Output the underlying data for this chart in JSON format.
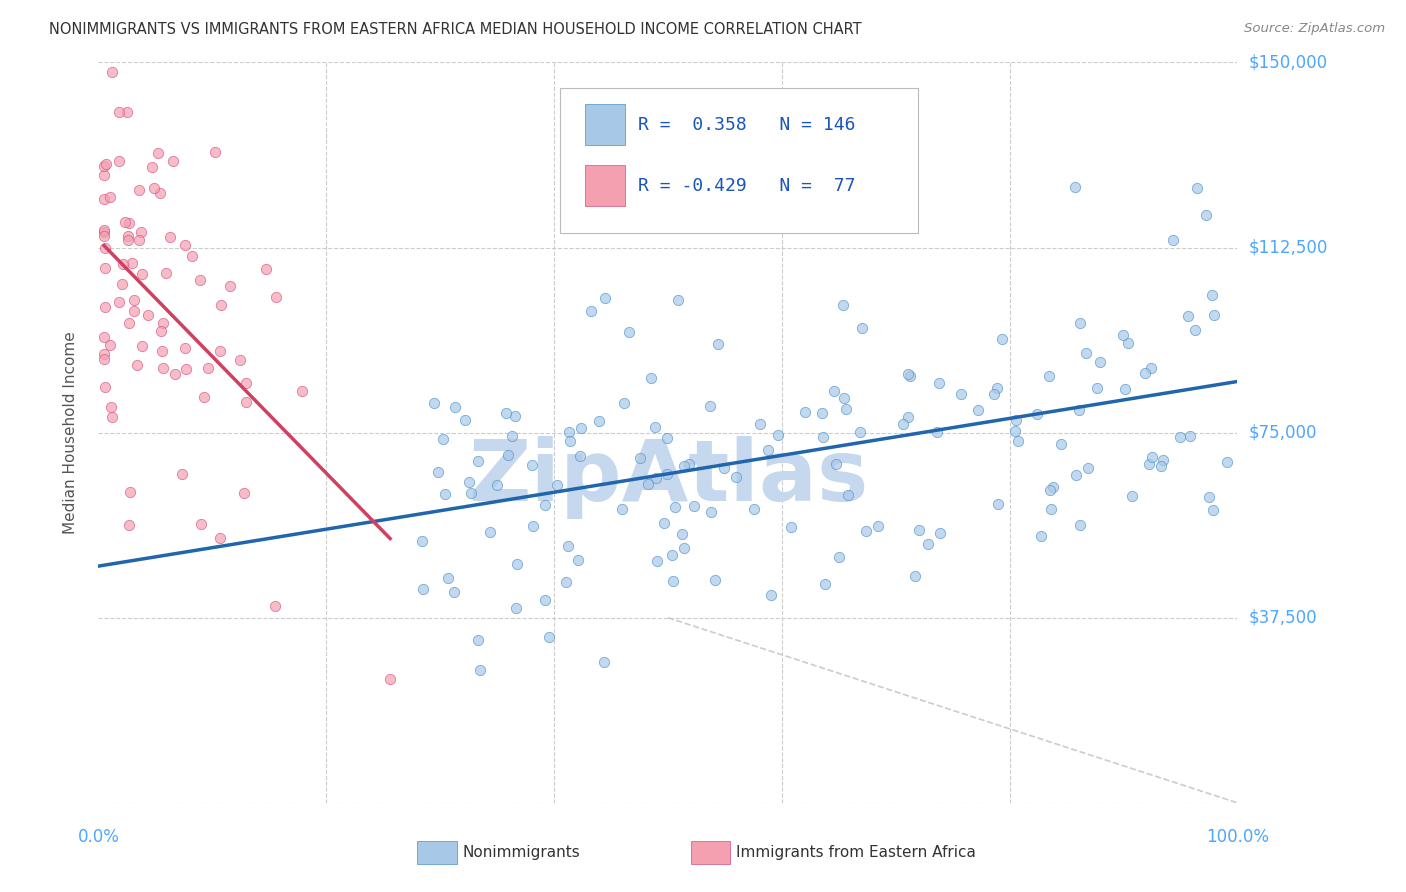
{
  "title": "NONIMMIGRANTS VS IMMIGRANTS FROM EASTERN AFRICA MEDIAN HOUSEHOLD INCOME CORRELATION CHART",
  "source": "Source: ZipAtlas.com",
  "ylabel": "Median Household Income",
  "ymin": 0,
  "ymax": 150000,
  "xmin": 0.0,
  "xmax": 100.0,
  "ytick_vals": [
    0,
    37500,
    75000,
    112500,
    150000
  ],
  "ytick_labels": [
    "",
    "$37,500",
    "$75,000",
    "$112,500",
    "$150,000"
  ],
  "blue_color": "#a8c8e8",
  "blue_edge_color": "#4a90c8",
  "blue_line_color": "#2166ac",
  "pink_color": "#f4a0b0",
  "pink_edge_color": "#d05080",
  "pink_line_color": "#d04060",
  "grid_color": "#cccccc",
  "axis_tick_color": "#4da6ff",
  "watermark": "ZipAtlas",
  "watermark_color": "#c5d8ee",
  "ref_line_color": "#cccccc",
  "title_color": "#333333",
  "source_color": "#888888",
  "ylabel_color": "#555555",
  "legend_text_color": "#1a55bb",
  "bottom_label_color": "#333333",
  "blue_r": "0.358",
  "blue_n": "146",
  "pink_r": "-0.429",
  "pink_n": "77",
  "blue_label": "Nonimmigrants",
  "pink_label": "Immigrants from Eastern Africa",
  "blue_seed": 42,
  "n_blue": 146,
  "n_pink": 77
}
